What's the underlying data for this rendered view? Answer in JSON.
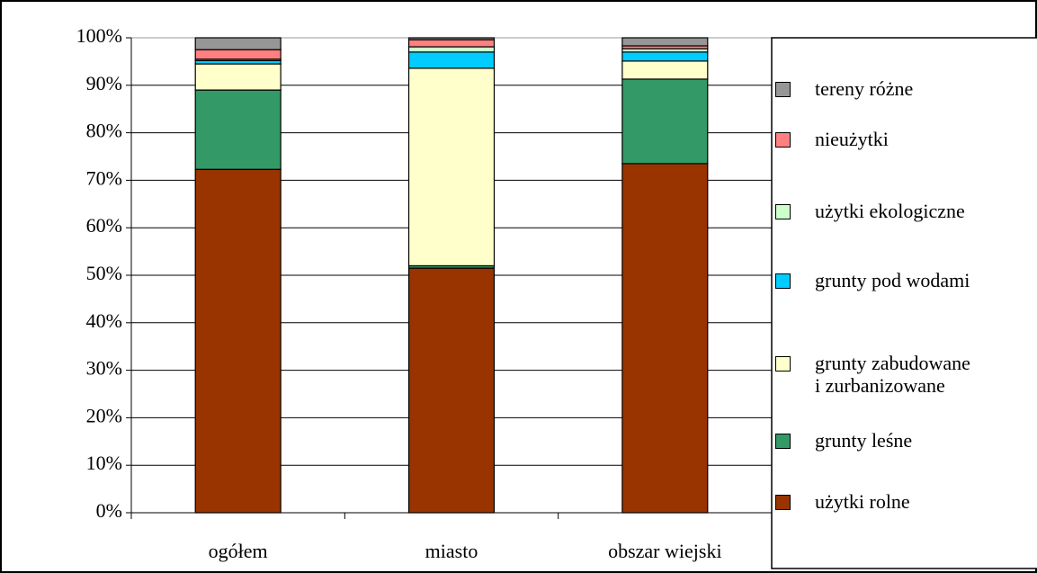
{
  "chart_data": {
    "type": "stacked_bar",
    "categories": [
      "ogółem",
      "miasto",
      "obszar wiejski"
    ],
    "series": [
      {
        "name": "użytki rolne",
        "color": "#993300",
        "values": [
          72.3,
          51.5,
          73.5
        ]
      },
      {
        "name": "grunty leśne",
        "color": "#339966",
        "values": [
          16.7,
          0.5,
          17.8
        ]
      },
      {
        "name": "grunty zabudowane\ni zurbanizowane",
        "color": "#ffffcc",
        "values": [
          5.5,
          41.6,
          3.8
        ]
      },
      {
        "name": "grunty pod wodami",
        "color": "#00ccff",
        "values": [
          0.7,
          3.4,
          1.9
        ]
      },
      {
        "name": "użytki ekologiczne",
        "color": "#ccffcc",
        "values": [
          0.3,
          1.1,
          0.7
        ]
      },
      {
        "name": "nieużytki",
        "color": "#ff8080",
        "values": [
          2.0,
          1.5,
          0.6
        ]
      },
      {
        "name": "tereny różne",
        "color": "#969696",
        "values": [
          2.5,
          0.4,
          1.7
        ]
      }
    ],
    "ylim": [
      0,
      100
    ],
    "yticks": [
      {
        "value": 0,
        "label": "0%"
      },
      {
        "value": 10,
        "label": "10%"
      },
      {
        "value": 20,
        "label": "20%"
      },
      {
        "value": 30,
        "label": "30%"
      },
      {
        "value": 40,
        "label": "40%"
      },
      {
        "value": 50,
        "label": "50%"
      },
      {
        "value": 60,
        "label": "60%"
      },
      {
        "value": 70,
        "label": "70%"
      },
      {
        "value": 80,
        "label": "80%"
      },
      {
        "value": 90,
        "label": "90%"
      },
      {
        "value": 100,
        "label": "100%"
      }
    ],
    "grid": true
  }
}
